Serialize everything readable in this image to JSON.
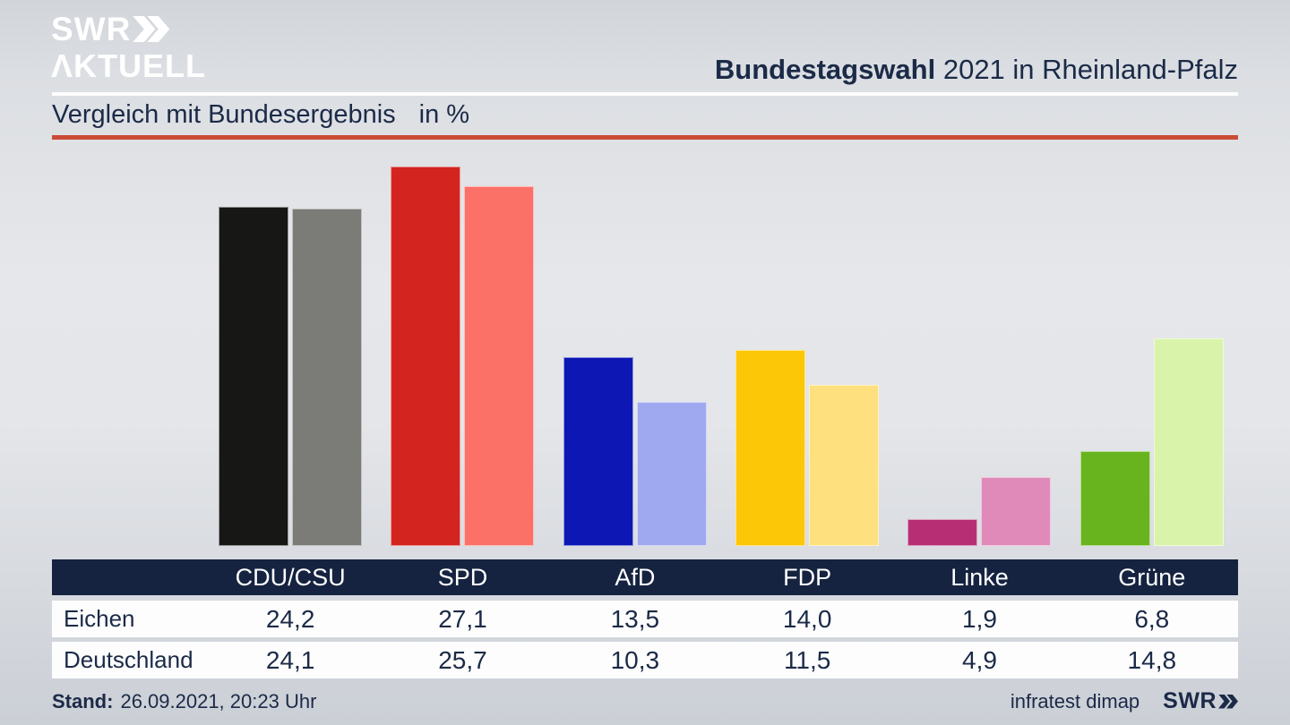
{
  "header": {
    "logo_line1": "SWR",
    "logo_line2": "ΛKTUELL",
    "title_bold": "Bundestagswahl",
    "title_rest": " 2021 in Rheinland-Pfalz"
  },
  "subtitle": {
    "text": "Vergleich mit Bundesergebnis",
    "unit": "in %"
  },
  "chart_data": {
    "type": "bar",
    "title": "Vergleich mit Bundesergebnis in %",
    "categories": [
      "CDU/CSU",
      "SPD",
      "AfD",
      "FDP",
      "Linke",
      "Grüne"
    ],
    "series": [
      {
        "name": "Eichen",
        "values": [
          24.2,
          27.1,
          13.5,
          14.0,
          1.9,
          6.8
        ],
        "colors": [
          "#171715",
          "#d32420",
          "#0d17b4",
          "#fcc706",
          "#b72e74",
          "#68b41e"
        ]
      },
      {
        "name": "Deutschland",
        "values": [
          24.1,
          25.7,
          10.3,
          11.5,
          4.9,
          14.8
        ],
        "colors": [
          "#7b7b78",
          "#fb7168",
          "#9fa9f0",
          "#fee07e",
          "#e08aba",
          "#d9f3ab"
        ]
      }
    ],
    "ylabel": "%",
    "ylim": [
      0,
      28
    ],
    "grid": false,
    "legend_position": "table-rows"
  },
  "table": {
    "columns": [
      "CDU/CSU",
      "SPD",
      "AfD",
      "FDP",
      "Linke",
      "Grüne"
    ],
    "rows": [
      {
        "label": "Eichen",
        "values": [
          "24,2",
          "27,1",
          "13,5",
          "14,0",
          "1,9",
          "6,8"
        ]
      },
      {
        "label": "Deutschland",
        "values": [
          "24,1",
          "25,7",
          "10,3",
          "11,5",
          "4,9",
          "14,8"
        ]
      }
    ]
  },
  "footer": {
    "stand_label": "Stand:",
    "stand_value": "26.09.2021, 20:23 Uhr",
    "source": "infratest dimap",
    "brand": "SWR"
  },
  "colors": {
    "accent_red": "#cb4b36",
    "navy_text": "#1b2a47",
    "table_header_bg": "#152340",
    "divider_white": "#fdfdfd"
  }
}
